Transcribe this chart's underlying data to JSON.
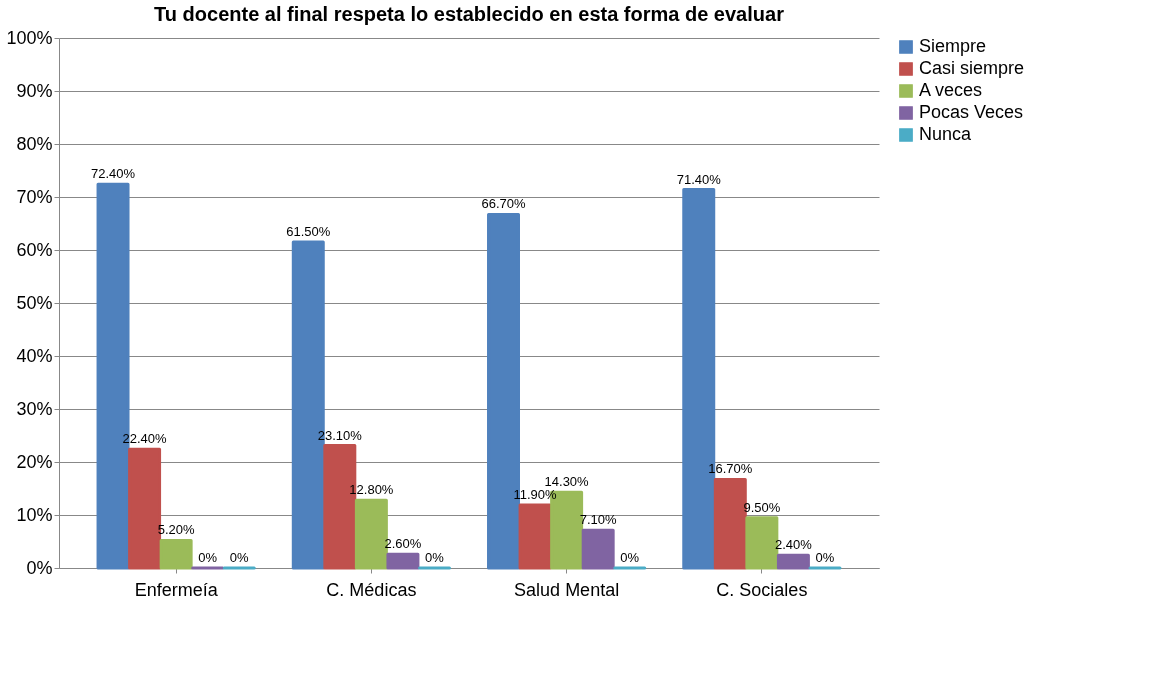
{
  "chart_data": {
    "type": "bar",
    "title": "Tu docente al final respeta lo establecido en esta forma de evaluar",
    "categories": [
      "Enfermeía",
      "C. Médicas",
      "Salud Mental",
      "C. Sociales"
    ],
    "series": [
      {
        "name": "Siempre",
        "color": "#4f81bd",
        "values": [
          72.4,
          61.5,
          66.7,
          71.4
        ],
        "value_labels": [
          "72.40%",
          "61.50%",
          "66.70%",
          "71.40%"
        ]
      },
      {
        "name": "Casi siempre",
        "color": "#c0504d",
        "values": [
          22.4,
          23.1,
          11.9,
          16.7
        ],
        "value_labels": [
          "22.40%",
          "23.10%",
          "11.90%",
          "16.70%"
        ]
      },
      {
        "name": "A veces",
        "color": "#9bbb59",
        "values": [
          5.2,
          12.8,
          14.3,
          9.5
        ],
        "value_labels": [
          "5.20%",
          "12.80%",
          "14.30%",
          "9.50%"
        ]
      },
      {
        "name": "Pocas Veces",
        "color": "#8064a2",
        "values": [
          0,
          2.6,
          7.1,
          2.4
        ],
        "value_labels": [
          "0%",
          "2.60%",
          "7.10%",
          "2.40%"
        ]
      },
      {
        "name": "Nunca",
        "color": "#4bacc6",
        "values": [
          0,
          0,
          0,
          0
        ],
        "value_labels": [
          "0%",
          "0%",
          "0%",
          "0%"
        ]
      }
    ],
    "ylim": [
      0,
      100
    ],
    "yticks": [
      {
        "value": 0,
        "label": "0%"
      },
      {
        "value": 10,
        "label": "10%"
      },
      {
        "value": 20,
        "label": "20%"
      },
      {
        "value": 30,
        "label": "30%"
      },
      {
        "value": 40,
        "label": "40%"
      },
      {
        "value": 50,
        "label": "50%"
      },
      {
        "value": 60,
        "label": "60%"
      },
      {
        "value": 70,
        "label": "70%"
      },
      {
        "value": 80,
        "label": "80%"
      },
      {
        "value": 90,
        "label": "90%"
      },
      {
        "value": 100,
        "label": "100%"
      }
    ],
    "grid": "y",
    "legend": "right"
  }
}
